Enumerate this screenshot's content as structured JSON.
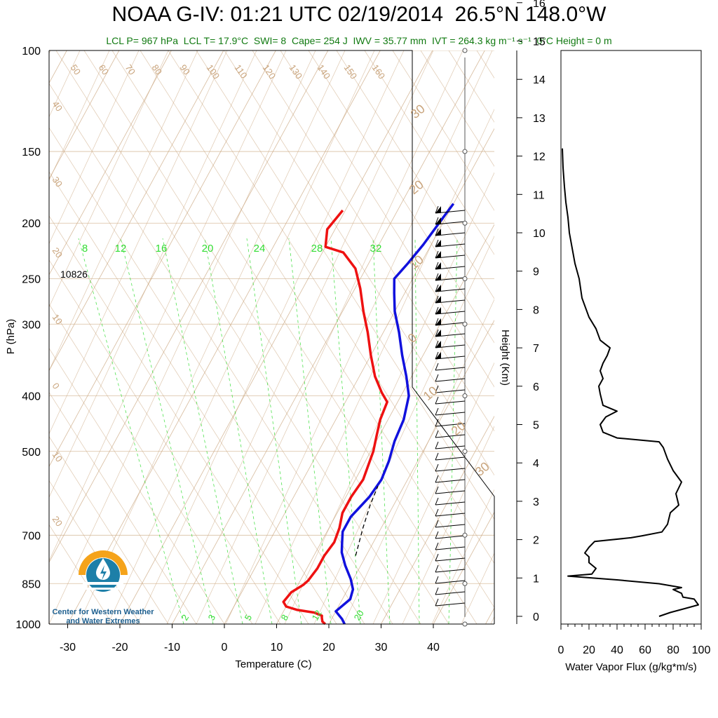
{
  "title": "NOAA G-IV: 01:21 UTC 02/19/2014  26.5°N 148.0°W",
  "subtitle": "LCL P= 967 hPa  LCL T= 17.9°C  SWI= 8  Cape= 254 J  IWV = 35.77 mm  IVT = 264.3 kg m⁻¹ s⁻¹  0°C Height = 0 m",
  "colors": {
    "temperature": "#ee1111",
    "dewpoint": "#1111dd",
    "isotherm": "#c9a47c",
    "mixing_ratio": "#33dd33",
    "flux": "#000000"
  },
  "logo": {
    "name": "Center for Western Weather and Water Extremes",
    "line1": "Center for Western Weather",
    "line2": "and Water Extremes"
  },
  "chart_data": [
    {
      "type": "line",
      "title": "",
      "xlabel": "Temperature (C)",
      "ylabel": "P (hPa)",
      "pressure_axis": "log",
      "ylim": [
        1000,
        100
      ],
      "xlim": [
        -33,
        52
      ],
      "x_ticks": [
        "-30",
        "-20",
        "-10",
        "0",
        "10",
        "20",
        "30",
        "40"
      ],
      "y_ticks": [
        "100",
        "150",
        "200",
        "250",
        "300",
        "400",
        "500",
        "700",
        "850",
        "1000"
      ],
      "height_annotation": "10826",
      "isotherm_labels": [
        "50",
        "60",
        "70",
        "80",
        "90",
        "100",
        "110",
        "120",
        "130",
        "140",
        "150",
        "160",
        "40",
        "30",
        "20",
        "10",
        "0",
        "10",
        "20"
      ],
      "right_isotherm_labels": [
        "30",
        "20",
        "10",
        "0",
        "10",
        "20",
        "30"
      ],
      "mixing_ratio_labels_top": [
        "8",
        "12",
        "16",
        "20",
        "24",
        "28",
        "32"
      ],
      "mixing_ratio_labels_bottom": [
        "2",
        "3",
        "5",
        "8",
        "12",
        "20"
      ],
      "series": [
        {
          "name": "Temperature",
          "points": [
            [
              19.3,
              1000
            ],
            [
              18.5,
              990
            ],
            [
              18.0,
              975
            ],
            [
              17.8,
              967
            ],
            [
              16.0,
              955
            ],
            [
              12.5,
              945
            ],
            [
              10.0,
              932
            ],
            [
              9.0,
              915
            ],
            [
              9.5,
              880
            ],
            [
              11.0,
              855
            ],
            [
              11.5,
              840
            ],
            [
              12.0,
              800
            ],
            [
              12.0,
              760
            ],
            [
              12.5,
              720
            ],
            [
              12.0,
              680
            ],
            [
              11.0,
              640
            ],
            [
              11.0,
              600
            ],
            [
              11.5,
              560
            ],
            [
              11.0,
              530
            ],
            [
              10.5,
              500
            ],
            [
              9.5,
              470
            ],
            [
              8.5,
              440
            ],
            [
              8.0,
              410
            ],
            [
              6.0,
              395
            ],
            [
              3.0,
              370
            ],
            [
              0.0,
              340
            ],
            [
              -3.0,
              310
            ],
            [
              -6.0,
              285
            ],
            [
              -9.0,
              260
            ],
            [
              -12.0,
              240
            ],
            [
              -16.0,
              225
            ],
            [
              -20.0,
              220
            ],
            [
              -21.5,
              205
            ],
            [
              -20.5,
              190
            ]
          ]
        },
        {
          "name": "Dewpoint",
          "points": [
            [
              23.0,
              1000
            ],
            [
              22.0,
              980
            ],
            [
              20.0,
              950
            ],
            [
              21.5,
              905
            ],
            [
              21.0,
              870
            ],
            [
              19.5,
              835
            ],
            [
              17.0,
              790
            ],
            [
              15.0,
              750
            ],
            [
              14.0,
              720
            ],
            [
              13.0,
              690
            ],
            [
              13.0,
              650
            ],
            [
              14.5,
              600
            ],
            [
              15.0,
              560
            ],
            [
              14.5,
              520
            ],
            [
              13.5,
              480
            ],
            [
              13.0,
              440
            ],
            [
              11.5,
              400
            ],
            [
              9.0,
              370
            ],
            [
              6.0,
              340
            ],
            [
              3.0,
              310
            ],
            [
              0.0,
              285
            ],
            [
              -2.0,
              265
            ],
            [
              -3.5,
              250
            ],
            [
              -2.5,
              235
            ],
            [
              -1.5,
              218
            ],
            [
              -0.5,
              195
            ],
            [
              0.0,
              185
            ]
          ]
        },
        {
          "name": "Parcel",
          "points": [
            [
              18.0,
              760
            ],
            [
              16.5,
              680
            ],
            [
              15.5,
              620
            ],
            [
              15.0,
              575
            ]
          ]
        }
      ]
    },
    {
      "type": "line",
      "title": "",
      "xlabel": "Water Vapor Flux (g/kg*m/s)",
      "ylabel": "Height (Km)",
      "xlim": [
        0,
        100
      ],
      "ylim": [
        0,
        16.5
      ],
      "x_ticks": [
        "0",
        "20",
        "40",
        "60",
        "80",
        "100"
      ],
      "y_ticks": [
        "0",
        "1",
        "2",
        "3",
        "4",
        "5",
        "6",
        "7",
        "8",
        "9",
        "10",
        "11",
        "12",
        "13",
        "14",
        "15",
        "16"
      ],
      "series": [
        {
          "points": [
            [
              70,
              0.0
            ],
            [
              78,
              0.1
            ],
            [
              88,
              0.2
            ],
            [
              98,
              0.3
            ],
            [
              95,
              0.45
            ],
            [
              87,
              0.5
            ],
            [
              86,
              0.6
            ],
            [
              80,
              0.7
            ],
            [
              86,
              0.75
            ],
            [
              70,
              0.85
            ],
            [
              40,
              0.95
            ],
            [
              5,
              1.05
            ],
            [
              22,
              1.1
            ],
            [
              25,
              1.25
            ],
            [
              20,
              1.4
            ],
            [
              20,
              1.55
            ],
            [
              17,
              1.65
            ],
            [
              20,
              1.8
            ],
            [
              24,
              1.95
            ],
            [
              50,
              2.05
            ],
            [
              58,
              2.1
            ],
            [
              72,
              2.2
            ],
            [
              76,
              2.4
            ],
            [
              78,
              2.7
            ],
            [
              84,
              2.9
            ],
            [
              82,
              3.2
            ],
            [
              86,
              3.5
            ],
            [
              80,
              3.8
            ],
            [
              76,
              4.1
            ],
            [
              73,
              4.4
            ],
            [
              70,
              4.55
            ],
            [
              40,
              4.65
            ],
            [
              30,
              4.8
            ],
            [
              28,
              5.0
            ],
            [
              32,
              5.2
            ],
            [
              40,
              5.35
            ],
            [
              30,
              5.5
            ],
            [
              28,
              5.8
            ],
            [
              27,
              6.0
            ],
            [
              30,
              6.2
            ],
            [
              28,
              6.4
            ],
            [
              30,
              6.6
            ],
            [
              33,
              6.8
            ],
            [
              35,
              7.0
            ],
            [
              28,
              7.2
            ],
            [
              25,
              7.5
            ],
            [
              20,
              7.8
            ],
            [
              15,
              8.3
            ],
            [
              13,
              8.8
            ],
            [
              10,
              9.2
            ],
            [
              8,
              9.6
            ],
            [
              6,
              10.0
            ],
            [
              5,
              10.4
            ],
            [
              3.5,
              10.8
            ],
            [
              2.5,
              11.2
            ],
            [
              1.5,
              11.7
            ],
            [
              1.0,
              12.2
            ]
          ]
        }
      ]
    }
  ]
}
